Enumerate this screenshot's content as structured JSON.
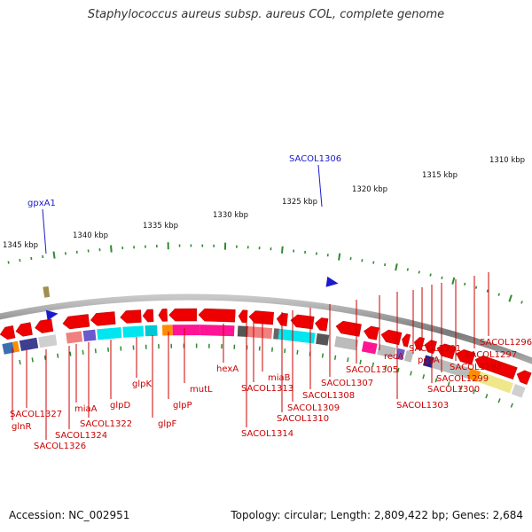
{
  "title": "Staphylococcus aureus subsp. aureus COL, complete genome",
  "footer": {
    "accession": "Accession: NC_002951",
    "summary": "Topology: circular; Length: 2,809,422 bp; Genes: 2,684"
  },
  "scale_ticks": [
    "1345 kbp",
    "1340 kbp",
    "1335 kbp",
    "1330 kbp",
    "1325 kbp",
    "1320 kbp",
    "1315 kbp",
    "1310 kbp"
  ],
  "markers": [
    "gpxA1",
    "SACOL1306"
  ],
  "gene_labels": [
    "SACOL1327",
    "glnR",
    "SACOL1326",
    "SACOL1324",
    "miaA",
    "SACOL1322",
    "glpD",
    "glpK",
    "glpF",
    "glpP",
    "mutL",
    "hexA",
    "SACOL1314",
    "SACOL1313",
    "miaB",
    "SACOL1310",
    "SACOL1309",
    "SACOL1308",
    "SACOL1307",
    "SACOL1305",
    "recA",
    "SACOL1303",
    "pgsA",
    "SACOL1301",
    "SACOL1300",
    "SACOL1299",
    "SACOL1298",
    "SACOL1297",
    "SACOL1296"
  ],
  "colors": {
    "gene_arrow": "#ee0000",
    "label": "#cc0000",
    "marker": "#1b1bcc",
    "tick": "#2e8b2e",
    "backbone": "#888888"
  }
}
